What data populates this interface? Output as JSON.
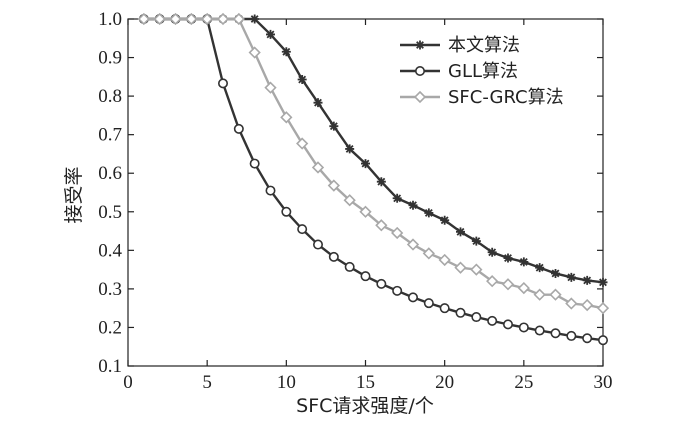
{
  "chart_data": {
    "type": "line",
    "title": "",
    "xlabel": "SFC请求强度/个",
    "ylabel": "接受率",
    "xlim": [
      0,
      30
    ],
    "ylim": [
      0.1,
      1.0
    ],
    "x_ticks": [
      "0",
      "5",
      "10",
      "15",
      "20",
      "25",
      "30"
    ],
    "y_ticks": [
      "0.1",
      "0.2",
      "0.3",
      "0.4",
      "0.5",
      "0.6",
      "0.7",
      "0.8",
      "0.9",
      "1.0"
    ],
    "grid": false,
    "legend_position": "top-right",
    "x": [
      1,
      2,
      3,
      4,
      5,
      6,
      7,
      8,
      9,
      10,
      11,
      12,
      13,
      14,
      15,
      16,
      17,
      18,
      19,
      20,
      21,
      22,
      23,
      24,
      25,
      26,
      27,
      28,
      29,
      30
    ],
    "series": [
      {
        "name": "本文算法",
        "marker": "star",
        "color": "#333333",
        "values": [
          1.0,
          1.0,
          1.0,
          1.0,
          1.0,
          1.0,
          1.0,
          1.0,
          0.96,
          0.915,
          0.843,
          0.783,
          0.722,
          0.663,
          0.625,
          0.578,
          0.535,
          0.517,
          0.497,
          0.478,
          0.448,
          0.424,
          0.395,
          0.38,
          0.37,
          0.355,
          0.34,
          0.33,
          0.322,
          0.317
        ]
      },
      {
        "name": "GLL算法",
        "marker": "circle",
        "color": "#333333",
        "values": [
          1.0,
          1.0,
          1.0,
          1.0,
          1.0,
          0.833,
          0.715,
          0.625,
          0.555,
          0.5,
          0.455,
          0.415,
          0.383,
          0.357,
          0.333,
          0.313,
          0.295,
          0.278,
          0.263,
          0.25,
          0.238,
          0.227,
          0.217,
          0.208,
          0.2,
          0.192,
          0.185,
          0.178,
          0.172,
          0.167
        ]
      },
      {
        "name": "SFC-GRC算法",
        "marker": "diamond",
        "color": "#a8a8a8",
        "values": [
          1.0,
          1.0,
          1.0,
          1.0,
          1.0,
          1.0,
          1.0,
          0.913,
          0.822,
          0.745,
          0.677,
          0.615,
          0.568,
          0.53,
          0.5,
          0.465,
          0.445,
          0.415,
          0.392,
          0.375,
          0.355,
          0.35,
          0.32,
          0.312,
          0.302,
          0.285,
          0.285,
          0.262,
          0.258,
          0.25
        ]
      }
    ]
  }
}
